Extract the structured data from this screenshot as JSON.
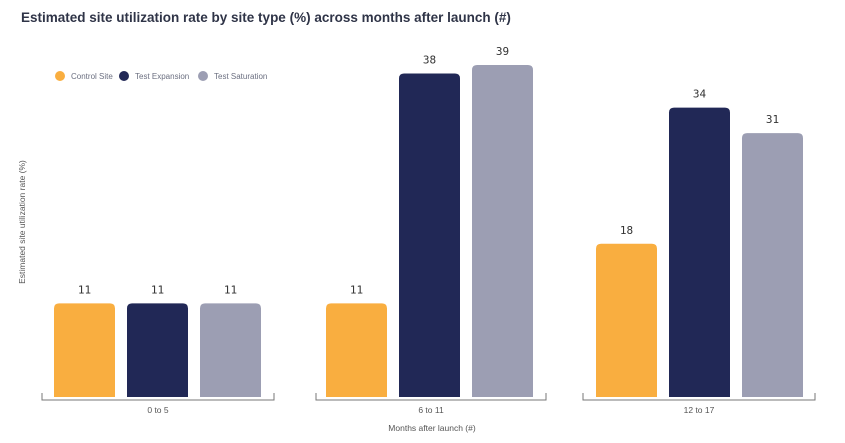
{
  "chart_data": {
    "type": "bar",
    "title": "Estimated site utilization rate by site type (%) across months after launch (#)",
    "xlabel": "Months after launch (#)",
    "ylabel": "Estimated site utilization rate (%)",
    "categories": [
      "0 to 5",
      "6 to 11",
      "12 to 17"
    ],
    "series": [
      {
        "name": "Control Site",
        "values": [
          11,
          11,
          18
        ],
        "color": "#f9ae40"
      },
      {
        "name": "Test Expansion",
        "values": [
          11,
          38,
          34
        ],
        "color": "#212856"
      },
      {
        "name": "Test Saturation",
        "values": [
          11,
          39,
          31
        ],
        "color": "#9c9eb3"
      }
    ],
    "ylim": [
      0,
      39
    ],
    "legend_position": "top-left",
    "grid": false
  }
}
